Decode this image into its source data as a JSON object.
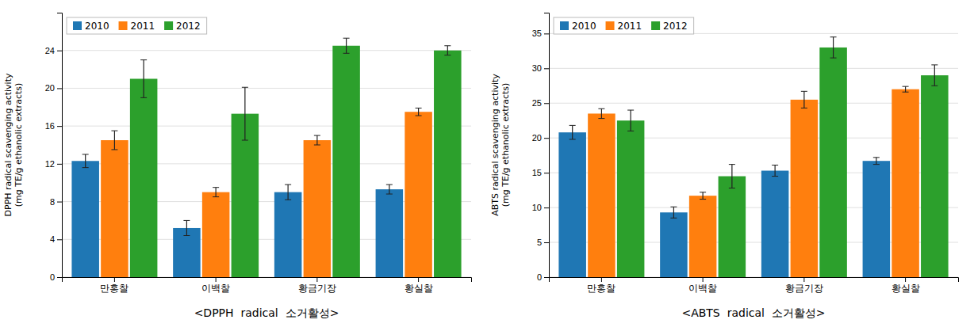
{
  "chart_data": [
    {
      "type": "bar",
      "categories": [
        "만홍찰",
        "이백찰",
        "황금기장",
        "황실찰"
      ],
      "series": [
        {
          "name": "2010",
          "values": [
            12.3,
            5.2,
            9.0,
            9.3
          ],
          "errors": [
            0.7,
            0.8,
            0.8,
            0.5
          ]
        },
        {
          "name": "2011",
          "values": [
            14.5,
            9.0,
            14.5,
            17.5
          ],
          "errors": [
            1.0,
            0.5,
            0.5,
            0.4
          ]
        },
        {
          "name": "2012",
          "values": [
            21.0,
            17.3,
            24.5,
            24.0
          ],
          "errors": [
            2.0,
            2.8,
            0.8,
            0.5
          ]
        }
      ],
      "ylabel": "DPPH radical scavenging activity\n(mg TE/g ethanolic extracts)",
      "caption": "<DPPH  radical  소거활성>",
      "ylim": [
        0,
        28
      ],
      "yticks": [
        0,
        4,
        8,
        12,
        16,
        20,
        24
      ],
      "grid": true,
      "legend": "upper left"
    },
    {
      "type": "bar",
      "categories": [
        "만홍찰",
        "이백찰",
        "황금기장",
        "황실찰"
      ],
      "series": [
        {
          "name": "2010",
          "values": [
            20.8,
            9.3,
            15.3,
            16.7
          ],
          "errors": [
            1.0,
            0.8,
            0.8,
            0.5
          ]
        },
        {
          "name": "2011",
          "values": [
            23.5,
            11.7,
            25.5,
            27.0
          ],
          "errors": [
            0.7,
            0.5,
            1.2,
            0.4
          ]
        },
        {
          "name": "2012",
          "values": [
            22.5,
            14.5,
            33.0,
            29.0
          ],
          "errors": [
            1.5,
            1.7,
            1.5,
            1.5
          ]
        }
      ],
      "ylabel": "ABTS radical scavenging activity\n(mg TE/g ethanolic extracts)",
      "caption": "<ABTS  radical  소거활성>",
      "ylim": [
        0,
        38
      ],
      "yticks": [
        0,
        5,
        10,
        15,
        20,
        25,
        30,
        35
      ],
      "grid": true,
      "legend": "upper left"
    }
  ]
}
